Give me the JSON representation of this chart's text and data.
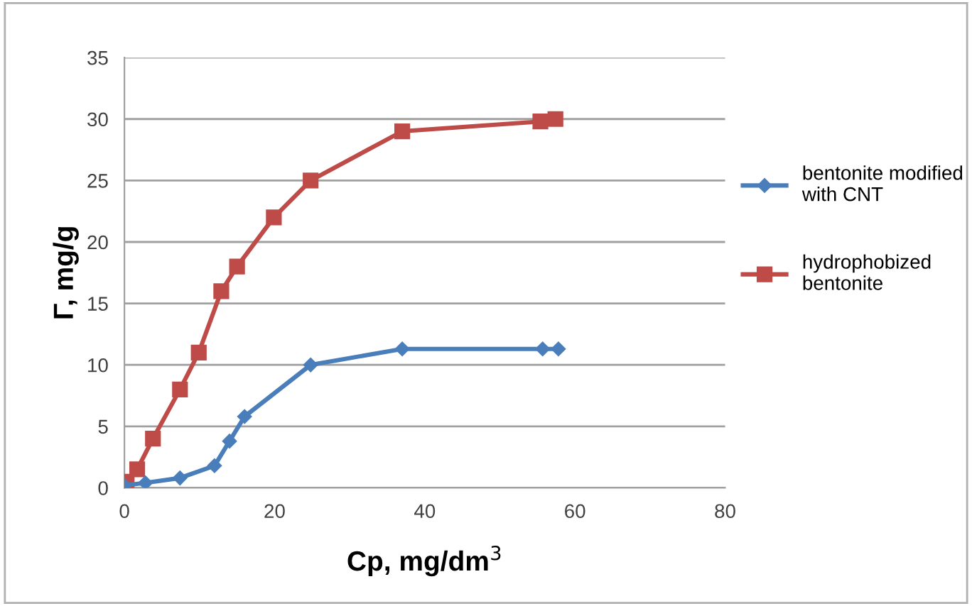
{
  "chart_data": {
    "type": "line",
    "xlabel": "Cp, mg/dm$^{3}$",
    "ylabel": "Γ, mg/g",
    "xlim": [
      0,
      80
    ],
    "xticks": [
      0,
      20,
      40,
      60,
      80
    ],
    "ylim": [
      0,
      35
    ],
    "yticks": [
      0,
      5,
      10,
      15,
      20,
      25,
      30,
      35
    ],
    "grid": "y",
    "legend": "right",
    "line_style": "solid",
    "series": [
      {
        "name": "bentonite modified with CNT",
        "color": "#4a7ebb",
        "marker": "diamond",
        "x": [
          0,
          2.8,
          7.4,
          12,
          14,
          16,
          24.8,
          37,
          55.7,
          57.8
        ],
        "values": [
          0.2,
          0.4,
          0.8,
          1.8,
          3.8,
          5.8,
          10,
          11.3,
          11.3,
          11.3
        ]
      },
      {
        "name": "hydrophobized bentonite",
        "color": "#be4b48",
        "marker": "square",
        "x": [
          0.3,
          1.7,
          3.8,
          7.4,
          9.9,
          12.9,
          15,
          19.9,
          24.8,
          37,
          55.4,
          57.4
        ],
        "values": [
          0.5,
          1.5,
          4,
          8,
          11,
          16,
          18,
          22,
          25,
          29,
          29.8,
          30
        ]
      }
    ]
  }
}
